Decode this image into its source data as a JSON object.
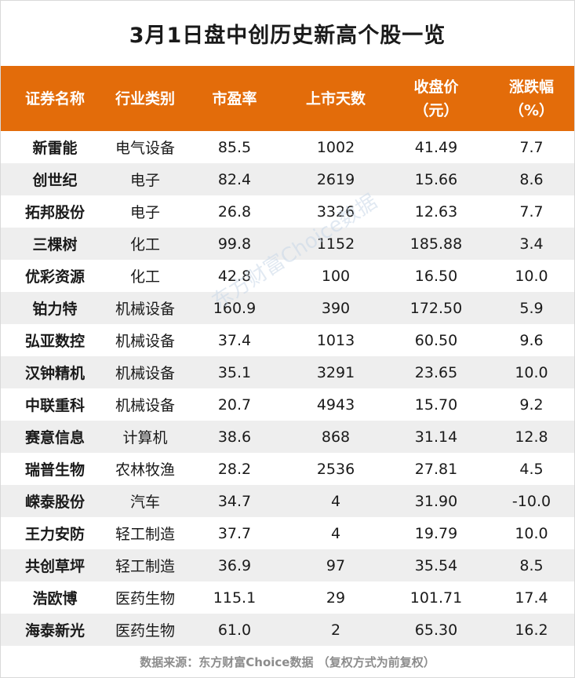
{
  "title": "3月1日盘中创历史新高个股一览",
  "header": {
    "col1": "证券名称",
    "col2": "行业类别",
    "col3": "市盈率",
    "col4": "上市天数",
    "col5_line1": "收盘价",
    "col5_line2": "（元）",
    "col6_line1": "涨跌幅",
    "col6_line2": "（%）"
  },
  "rows": [
    [
      "新雷能",
      "电气设备",
      "85.5",
      "1002",
      "41.49",
      "7.7"
    ],
    [
      "创世纪",
      "电子",
      "82.4",
      "2619",
      "15.66",
      "8.6"
    ],
    [
      "拓邦股份",
      "电子",
      "26.8",
      "3326",
      "12.63",
      "7.7"
    ],
    [
      "三棵树",
      "化工",
      "99.8",
      "1152",
      "185.88",
      "3.4"
    ],
    [
      "优彩资源",
      "化工",
      "42.8",
      "100",
      "16.50",
      "10.0"
    ],
    [
      "铂力特",
      "机械设备",
      "160.9",
      "390",
      "172.50",
      "5.9"
    ],
    [
      "弘亚数控",
      "机械设备",
      "37.4",
      "1013",
      "60.50",
      "9.6"
    ],
    [
      "汉钟精机",
      "机械设备",
      "35.1",
      "3291",
      "23.65",
      "10.0"
    ],
    [
      "中联重科",
      "机械设备",
      "20.7",
      "4943",
      "15.70",
      "9.2"
    ],
    [
      "赛意信息",
      "计算机",
      "38.6",
      "868",
      "31.14",
      "12.8"
    ],
    [
      "瑞普生物",
      "农林牧渔",
      "28.2",
      "2536",
      "27.81",
      "4.5"
    ],
    [
      "嵘泰股份",
      "汽车",
      "34.7",
      "4",
      "31.90",
      "-10.0"
    ],
    [
      "王力安防",
      "轻工制造",
      "37.7",
      "4",
      "19.79",
      "10.0"
    ],
    [
      "共创草坪",
      "轻工制造",
      "36.9",
      "97",
      "35.54",
      "8.5"
    ],
    [
      "浩欧博",
      "医药生物",
      "115.1",
      "29",
      "101.71",
      "17.4"
    ],
    [
      "海泰新光",
      "医药生物",
      "61.0",
      "2",
      "65.30",
      "16.2"
    ]
  ],
  "footer": "数据来源：东方财富Choice数据 （复权方式为前复权）",
  "watermark": "东方财富Choice数据",
  "colors": {
    "header_bg": "#e36c0a",
    "header_text": "#ffffff",
    "row_alt_bg": "#eeeeee",
    "footer_text": "#8c8c8c"
  }
}
